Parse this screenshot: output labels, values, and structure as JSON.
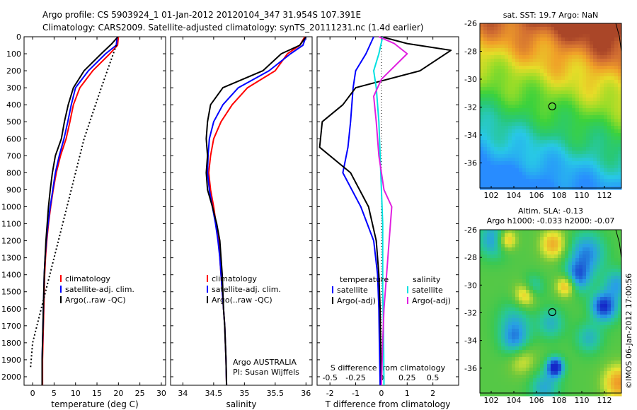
{
  "header": {
    "line1": "Argo profile: CS 5903924_1 01-Jan-2012 20120104_347 31.954S 107.391E",
    "line2": "Climatology: CARS2009. Satellite-adjusted climatology: synTS_20111231.nc (1.4d earlier)"
  },
  "chart_data": [
    {
      "type": "line",
      "panel": "temperature",
      "xlabel": "temperature (deg C)",
      "ylabel": "",
      "xlim": [
        -2,
        31
      ],
      "ylim": [
        2050,
        0
      ],
      "xticks": [
        "0",
        "5",
        "10",
        "15",
        "20",
        "25",
        "30"
      ],
      "xtick_values": [
        0,
        5,
        10,
        15,
        20,
        25,
        30
      ],
      "yticks": [
        "0",
        "100",
        "200",
        "300",
        "400",
        "500",
        "600",
        "700",
        "800",
        "900",
        "1000",
        "1100",
        "1200",
        "1300",
        "1400",
        "1500",
        "1600",
        "1700",
        "1800",
        "1900",
        "2000"
      ],
      "legend": [
        "climatology",
        "satellite-adj. clim.",
        "Argo(..raw -QC)"
      ],
      "series": [
        {
          "name": "climatology",
          "color": "#ff0000",
          "points": [
            [
              20,
              0
            ],
            [
              19.8,
              50
            ],
            [
              18,
              100
            ],
            [
              14,
              200
            ],
            [
              11,
              300
            ],
            [
              9.5,
              400
            ],
            [
              8.7,
              500
            ],
            [
              7.8,
              600
            ],
            [
              6.5,
              700
            ],
            [
              5.5,
              800
            ],
            [
              4.8,
              900
            ],
            [
              4.2,
              1000
            ],
            [
              3.7,
              1100
            ],
            [
              3.3,
              1200
            ],
            [
              3.0,
              1300
            ],
            [
              2.8,
              1400
            ],
            [
              2.7,
              1500
            ],
            [
              2.6,
              1600
            ],
            [
              2.5,
              1700
            ],
            [
              2.4,
              1800
            ],
            [
              2.3,
              1900
            ],
            [
              2.3,
              2050
            ]
          ]
        },
        {
          "name": "satellite-adj. clim.",
          "color": "#0000ff",
          "points": [
            [
              19.7,
              0
            ],
            [
              19.5,
              50
            ],
            [
              17,
              100
            ],
            [
              13,
              200
            ],
            [
              10,
              300
            ],
            [
              9,
              400
            ],
            [
              8.2,
              500
            ],
            [
              7.3,
              600
            ],
            [
              6.2,
              700
            ],
            [
              5.3,
              800
            ],
            [
              4.7,
              900
            ],
            [
              4.1,
              1000
            ],
            [
              3.6,
              1100
            ],
            [
              3.2,
              1200
            ],
            [
              2.9,
              1300
            ],
            [
              2.7,
              1400
            ],
            [
              2.6,
              1500
            ],
            [
              2.5,
              1600
            ],
            [
              2.4,
              1700
            ],
            [
              2.3,
              1800
            ],
            [
              2.2,
              1900
            ],
            [
              2.2,
              2050
            ]
          ]
        },
        {
          "name": "Argo(..raw -QC)",
          "color": "#000000",
          "points": [
            [
              19.9,
              0
            ],
            [
              18.5,
              40
            ],
            [
              16,
              100
            ],
            [
              12,
              200
            ],
            [
              9.5,
              300
            ],
            [
              8.3,
              400
            ],
            [
              7.4,
              500
            ],
            [
              6.7,
              600
            ],
            [
              5.3,
              700
            ],
            [
              4.6,
              800
            ],
            [
              4.1,
              900
            ],
            [
              3.7,
              1000
            ],
            [
              3.4,
              1100
            ],
            [
              3.1,
              1200
            ],
            [
              2.9,
              1300
            ],
            [
              2.7,
              1400
            ],
            [
              2.6,
              1500
            ],
            [
              2.5,
              1600
            ],
            [
              2.4,
              1700
            ],
            [
              2.3,
              1800
            ],
            [
              2.2,
              1900
            ],
            [
              2.2,
              2050
            ]
          ]
        },
        {
          "name": "",
          "color": "#000000",
          "dotted": true,
          "points": [
            [
              19.5,
              50
            ],
            [
              16,
              300
            ],
            [
              12,
              600
            ],
            [
              9,
              900
            ],
            [
              6,
              1200
            ],
            [
              3,
              1500
            ],
            [
              0,
              1800
            ],
            [
              -0.5,
              1950
            ]
          ]
        }
      ]
    },
    {
      "type": "line",
      "panel": "salinity",
      "xlabel": "salinity",
      "xlim": [
        33.8,
        36.1
      ],
      "ylim": [
        2050,
        0
      ],
      "xticks": [
        "34",
        "34.5",
        "35",
        "35.5",
        "36"
      ],
      "xtick_values": [
        34,
        34.5,
        35,
        35.5,
        36
      ],
      "legend": [
        "climatology",
        "satellite-adj. clim.",
        "Argo(..raw -QC)"
      ],
      "annotations": [
        "Argo AUSTRALIA",
        "PI: Susan Wijffels"
      ],
      "series": [
        {
          "name": "climatology",
          "color": "#ff0000",
          "points": [
            [
              35.98,
              0
            ],
            [
              35.9,
              50
            ],
            [
              35.7,
              100
            ],
            [
              35.5,
              200
            ],
            [
              35.05,
              300
            ],
            [
              34.8,
              400
            ],
            [
              34.62,
              500
            ],
            [
              34.5,
              600
            ],
            [
              34.45,
              700
            ],
            [
              34.42,
              800
            ],
            [
              34.45,
              900
            ],
            [
              34.5,
              1000
            ],
            [
              34.54,
              1100
            ],
            [
              34.58,
              1200
            ],
            [
              34.6,
              1300
            ],
            [
              34.62,
              1400
            ],
            [
              34.64,
              1500
            ],
            [
              34.66,
              1600
            ],
            [
              34.68,
              1700
            ],
            [
              34.69,
              1800
            ],
            [
              34.7,
              1900
            ],
            [
              34.71,
              2050
            ]
          ]
        },
        {
          "name": "satellite-adj. clim.",
          "color": "#0000ff",
          "points": [
            [
              36.0,
              0
            ],
            [
              35.95,
              50
            ],
            [
              35.75,
              100
            ],
            [
              35.4,
              200
            ],
            [
              34.9,
              300
            ],
            [
              34.65,
              400
            ],
            [
              34.5,
              500
            ],
            [
              34.43,
              600
            ],
            [
              34.41,
              700
            ],
            [
              34.4,
              800
            ],
            [
              34.43,
              900
            ],
            [
              34.48,
              1000
            ],
            [
              34.53,
              1100
            ],
            [
              34.57,
              1200
            ],
            [
              34.6,
              1300
            ],
            [
              34.62,
              1400
            ],
            [
              34.64,
              1500
            ],
            [
              34.66,
              1600
            ],
            [
              34.68,
              1700
            ],
            [
              34.69,
              1800
            ],
            [
              34.7,
              1900
            ],
            [
              34.71,
              2050
            ]
          ]
        },
        {
          "name": "Argo(..raw -QC)",
          "color": "#000000",
          "points": [
            [
              36.0,
              0
            ],
            [
              35.9,
              50
            ],
            [
              35.6,
              100
            ],
            [
              35.3,
              200
            ],
            [
              34.65,
              300
            ],
            [
              34.45,
              400
            ],
            [
              34.4,
              500
            ],
            [
              34.38,
              600
            ],
            [
              34.4,
              700
            ],
            [
              34.38,
              800
            ],
            [
              34.4,
              900
            ],
            [
              34.48,
              1000
            ],
            [
              34.55,
              1100
            ],
            [
              34.6,
              1200
            ],
            [
              34.62,
              1300
            ],
            [
              34.64,
              1400
            ],
            [
              34.65,
              1500
            ],
            [
              34.66,
              1600
            ],
            [
              34.68,
              1700
            ],
            [
              34.69,
              1800
            ],
            [
              34.7,
              1900
            ],
            [
              34.71,
              2050
            ]
          ]
        }
      ]
    },
    {
      "type": "line",
      "panel": "differences",
      "xlabel": "T difference from climatology",
      "xlabel_top": "S difference from climatology",
      "xlim": [
        -2.5,
        3.0
      ],
      "ylim": [
        2050,
        0
      ],
      "xticks": [
        "-2",
        "-1",
        "0",
        "1",
        "2"
      ],
      "xtick_values": [
        -2,
        -1,
        0,
        1,
        2
      ],
      "xticks_top": [
        "-0.5",
        "-0.25",
        "0",
        "0.25",
        "0.5"
      ],
      "legend_temperature": [
        "temperature",
        "satellite",
        "Argo(-adj)"
      ],
      "legend_salinity": [
        "salinity",
        "satellite",
        "Argo(-adj)"
      ],
      "series": [
        {
          "name": "satellite",
          "group": "temperature",
          "color": "#0000ff",
          "points": [
            [
              -0.3,
              0
            ],
            [
              -0.6,
              100
            ],
            [
              -1.0,
              200
            ],
            [
              -1.1,
              300
            ],
            [
              -1.2,
              500
            ],
            [
              -1.3,
              650
            ],
            [
              -1.5,
              800
            ],
            [
              -0.8,
              1000
            ],
            [
              -0.3,
              1200
            ],
            [
              -0.15,
              1400
            ],
            [
              -0.1,
              1600
            ],
            [
              -0.08,
              1800
            ],
            [
              -0.05,
              2050
            ]
          ]
        },
        {
          "name": "Argo(-adj)",
          "group": "temperature",
          "color": "#000000",
          "points": [
            [
              0,
              0
            ],
            [
              1.0,
              40
            ],
            [
              2.7,
              80
            ],
            [
              1.5,
              200
            ],
            [
              -1.0,
              300
            ],
            [
              -1.5,
              400
            ],
            [
              -2.3,
              500
            ],
            [
              -2.4,
              650
            ],
            [
              -1.2,
              800
            ],
            [
              -0.5,
              1000
            ],
            [
              -0.2,
              1200
            ],
            [
              -0.1,
              1400
            ],
            [
              -0.05,
              1600
            ],
            [
              -0.03,
              1800
            ],
            [
              0,
              2050
            ]
          ]
        },
        {
          "name": "satellite",
          "group": "salinity",
          "color": "#00e0e0",
          "points": [
            [
              0.05,
              0
            ],
            [
              -0.1,
              100
            ],
            [
              -0.3,
              200
            ],
            [
              -0.2,
              300
            ],
            [
              -0.1,
              500
            ],
            [
              -0.05,
              700
            ],
            [
              0,
              900
            ],
            [
              0.05,
              1100
            ],
            [
              0.05,
              1300
            ],
            [
              0.05,
              1500
            ],
            [
              0.08,
              1700
            ],
            [
              0.1,
              2050
            ]
          ]
        },
        {
          "name": "Argo(-adj)",
          "group": "salinity",
          "color": "#e020e0",
          "points": [
            [
              -0.1,
              0
            ],
            [
              0.5,
              40
            ],
            [
              1.0,
              100
            ],
            [
              0,
              250
            ],
            [
              -0.3,
              350
            ],
            [
              -0.2,
              500
            ],
            [
              -0.1,
              700
            ],
            [
              0.1,
              900
            ],
            [
              0.4,
              1000
            ],
            [
              0.3,
              1200
            ],
            [
              0.2,
              1400
            ],
            [
              0.1,
              1600
            ],
            [
              0.05,
              1800
            ],
            [
              0,
              2050
            ]
          ]
        }
      ]
    },
    {
      "type": "heatmap",
      "panel": "sst-map",
      "title": "sat. SST: 19.7  Argo: NaN",
      "xlim": [
        101,
        113.5
      ],
      "ylim": [
        -37.8,
        -26
      ],
      "xticks": [
        "102",
        "104",
        "106",
        "108",
        "110",
        "112"
      ],
      "yticks": [
        "-26",
        "-28",
        "-30",
        "-32",
        "-34",
        "-36"
      ],
      "marker": {
        "lon": 107.39,
        "lat": -31.95
      }
    },
    {
      "type": "heatmap",
      "panel": "sla-map",
      "title": "Altim. SLA: -0.13",
      "subtitle": "Argo h1000: -0.033  h2000: -0.07",
      "xlim": [
        101,
        113.5
      ],
      "ylim": [
        -37.8,
        -26
      ],
      "xticks": [
        "102",
        "104",
        "106",
        "108",
        "110",
        "112"
      ],
      "yticks": [
        "-26",
        "-28",
        "-30",
        "-32",
        "-34",
        "-36"
      ],
      "marker": {
        "lon": 107.39,
        "lat": -31.95
      }
    }
  ],
  "credit": "©IMOS 06-Jan-2012 17:00:56"
}
